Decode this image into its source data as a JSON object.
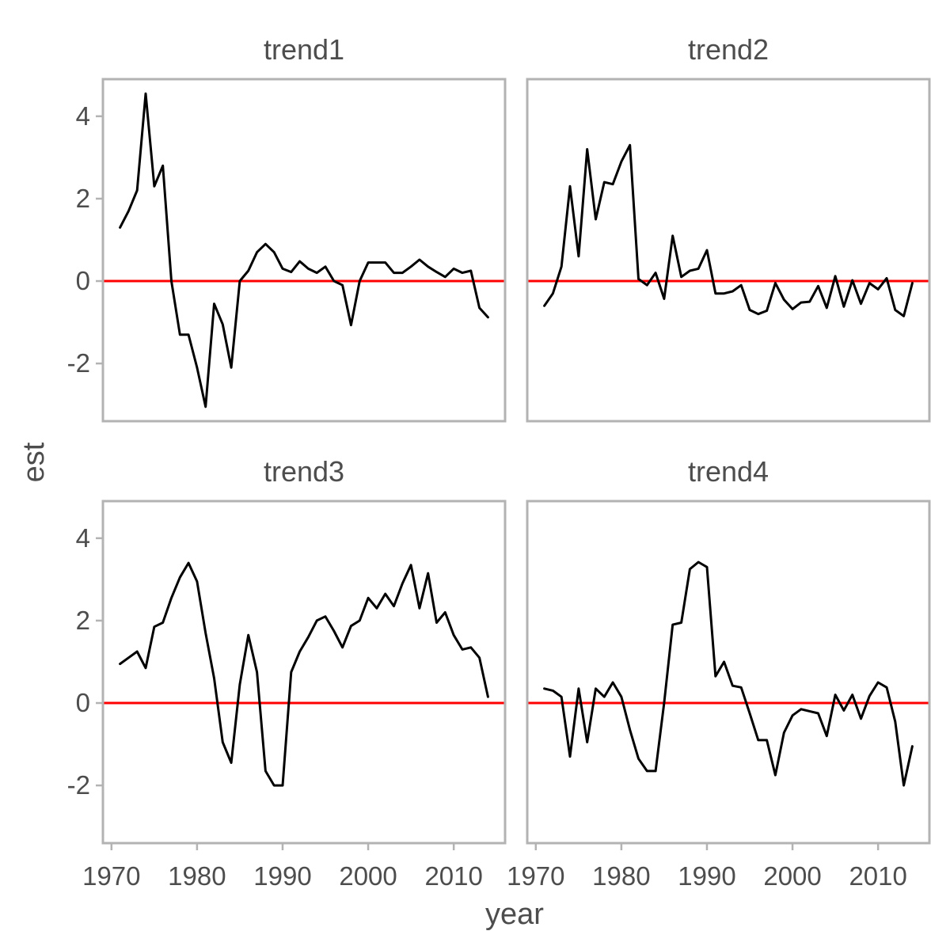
{
  "chart_data": {
    "type": "line",
    "xlabel": "year",
    "ylabel": "est",
    "xlim": [
      1969,
      2016
    ],
    "ylim": [
      -3.4,
      4.9
    ],
    "x_ticks": [
      1970,
      1980,
      1990,
      2000,
      2010
    ],
    "y_ticks": [
      -2,
      0,
      2,
      4
    ],
    "y_tick_labels": [
      "-2",
      "0",
      "2",
      "4"
    ],
    "reference_line": {
      "y": 0,
      "color": "#ff0000"
    },
    "grid": false,
    "x": [
      1971,
      1972,
      1973,
      1974,
      1975,
      1976,
      1977,
      1978,
      1979,
      1980,
      1981,
      1982,
      1983,
      1984,
      1985,
      1986,
      1987,
      1988,
      1989,
      1990,
      1991,
      1992,
      1993,
      1994,
      1995,
      1996,
      1997,
      1998,
      1999,
      2000,
      2001,
      2002,
      2003,
      2004,
      2005,
      2006,
      2007,
      2008,
      2009,
      2010,
      2011,
      2012,
      2013,
      2014
    ],
    "panels": [
      {
        "title": "trend1",
        "values": [
          1.3,
          1.7,
          2.2,
          4.55,
          2.3,
          2.8,
          0.0,
          -1.3,
          -1.3,
          -2.1,
          -3.05,
          -0.55,
          -1.05,
          -2.1,
          0.0,
          0.25,
          0.7,
          0.9,
          0.7,
          0.3,
          0.22,
          0.48,
          0.3,
          0.2,
          0.35,
          0.0,
          -0.1,
          -1.07,
          0.0,
          0.45,
          0.45,
          0.45,
          0.2,
          0.2,
          0.35,
          0.52,
          0.35,
          0.22,
          0.1,
          0.3,
          0.2,
          0.25,
          -0.65,
          -0.88
        ]
      },
      {
        "title": "trend2",
        "values": [
          -0.6,
          -0.3,
          0.35,
          2.3,
          0.6,
          3.2,
          1.5,
          2.4,
          2.35,
          2.9,
          3.3,
          0.05,
          -0.1,
          0.2,
          -0.43,
          1.1,
          0.1,
          0.25,
          0.3,
          0.75,
          -0.3,
          -0.3,
          -0.25,
          -0.1,
          -0.7,
          -0.8,
          -0.72,
          -0.05,
          -0.45,
          -0.68,
          -0.52,
          -0.5,
          -0.12,
          -0.65,
          0.12,
          -0.62,
          0.02,
          -0.55,
          -0.05,
          -0.2,
          0.07,
          -0.7,
          -0.85,
          -0.05
        ]
      },
      {
        "title": "trend3",
        "values": [
          0.95,
          1.1,
          1.25,
          0.85,
          1.85,
          1.95,
          2.55,
          3.05,
          3.4,
          2.95,
          1.7,
          0.6,
          -0.95,
          -1.45,
          0.45,
          1.65,
          0.75,
          -1.65,
          -2.0,
          -2.0,
          0.75,
          1.25,
          1.6,
          2.0,
          2.1,
          1.75,
          1.35,
          1.87,
          2.0,
          2.55,
          2.3,
          2.65,
          2.35,
          2.9,
          3.35,
          2.3,
          3.15,
          1.95,
          2.2,
          1.65,
          1.3,
          1.35,
          1.1,
          0.15
        ]
      },
      {
        "title": "trend4",
        "values": [
          0.35,
          0.3,
          0.15,
          -1.3,
          0.35,
          -0.95,
          0.35,
          0.15,
          0.5,
          0.15,
          -0.65,
          -1.35,
          -1.65,
          -1.65,
          0.0,
          1.9,
          1.95,
          3.25,
          3.42,
          3.3,
          0.65,
          1.0,
          0.42,
          0.38,
          -0.25,
          -0.9,
          -0.9,
          -1.75,
          -0.72,
          -0.3,
          -0.15,
          -0.2,
          -0.25,
          -0.8,
          0.2,
          -0.18,
          0.2,
          -0.38,
          0.17,
          0.5,
          0.38,
          -0.45,
          -2.0,
          -1.05
        ]
      }
    ]
  }
}
